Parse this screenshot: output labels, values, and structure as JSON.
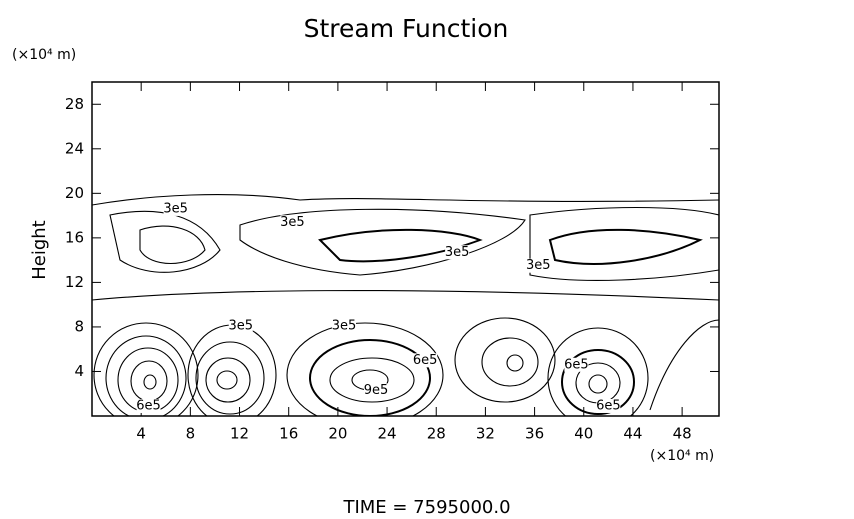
{
  "chart_data": {
    "type": "contour",
    "title": "Stream Function",
    "x_unit": "(×10⁴ m)",
    "y_unit": "(×10⁴ m)",
    "y_label": "Height",
    "footer": "TIME  =  7595000.0",
    "xlim": [
      0,
      51
    ],
    "ylim": [
      0,
      30
    ],
    "xticks": [
      4,
      8,
      12,
      16,
      20,
      24,
      28,
      32,
      36,
      40,
      44,
      48
    ],
    "yticks": [
      4,
      8,
      12,
      16,
      20,
      24,
      28
    ],
    "contour_labels": [
      {
        "text": "3e5",
        "x": 6.8,
        "y": 18.6
      },
      {
        "text": "3e5",
        "x": 16.3,
        "y": 17.4
      },
      {
        "text": "3e5",
        "x": 29.7,
        "y": 14.7
      },
      {
        "text": "3e5",
        "x": 36.3,
        "y": 13.5
      },
      {
        "text": "3e5",
        "x": 12.1,
        "y": 8.1
      },
      {
        "text": "3e5",
        "x": 20.5,
        "y": 8.1
      },
      {
        "text": "6e5",
        "x": 4.6,
        "y": 0.9
      },
      {
        "text": "9e5",
        "x": 23.1,
        "y": 2.3
      },
      {
        "text": "6e5",
        "x": 27.1,
        "y": 5.0
      },
      {
        "text": "6e5",
        "x": 39.4,
        "y": 4.6
      },
      {
        "text": "6e5",
        "x": 42.0,
        "y": 0.9
      }
    ]
  }
}
